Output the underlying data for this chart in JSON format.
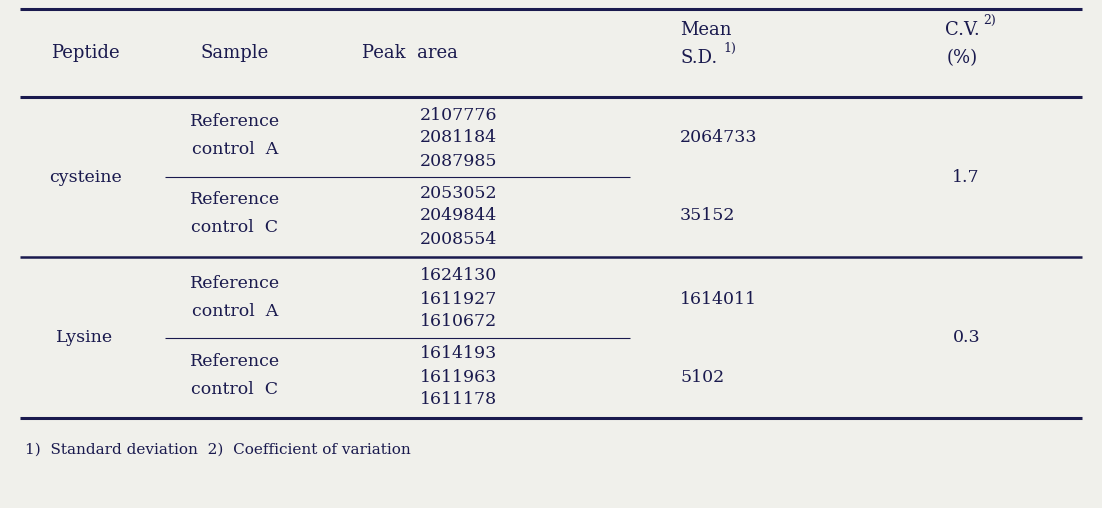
{
  "footnote": "1)  Standard deviation  2)  Coefficient of variation",
  "bg_color": "#f0f0eb",
  "text_color": "#1a1a4e",
  "rows": [
    {
      "peptide": "cysteine",
      "sample_line1": "Reference",
      "sample_line2": "control  A",
      "peak_areas": [
        "2107776",
        "2081184",
        "2087985"
      ],
      "mean": "2064733",
      "sd": "",
      "cv": ""
    },
    {
      "peptide": "",
      "sample_line1": "Reference",
      "sample_line2": "control  C",
      "peak_areas": [
        "2053052",
        "2049844",
        "2008554"
      ],
      "mean": "",
      "sd": "35152",
      "cv": "1.7"
    },
    {
      "peptide": "Lysine",
      "sample_line1": "Reference",
      "sample_line2": "control  A",
      "peak_areas": [
        "1624130",
        "1611927",
        "1610672"
      ],
      "mean": "1614011",
      "sd": "",
      "cv": ""
    },
    {
      "peptide": "",
      "sample_line1": "Reference",
      "sample_line2": "control  C",
      "peak_areas": [
        "1614193",
        "1611963",
        "1611178"
      ],
      "mean": "",
      "sd": "5102",
      "cv": "0.3"
    }
  ],
  "font_size_header": 13,
  "font_size_body": 12.5,
  "font_size_footnote": 11,
  "font_size_super": 9
}
